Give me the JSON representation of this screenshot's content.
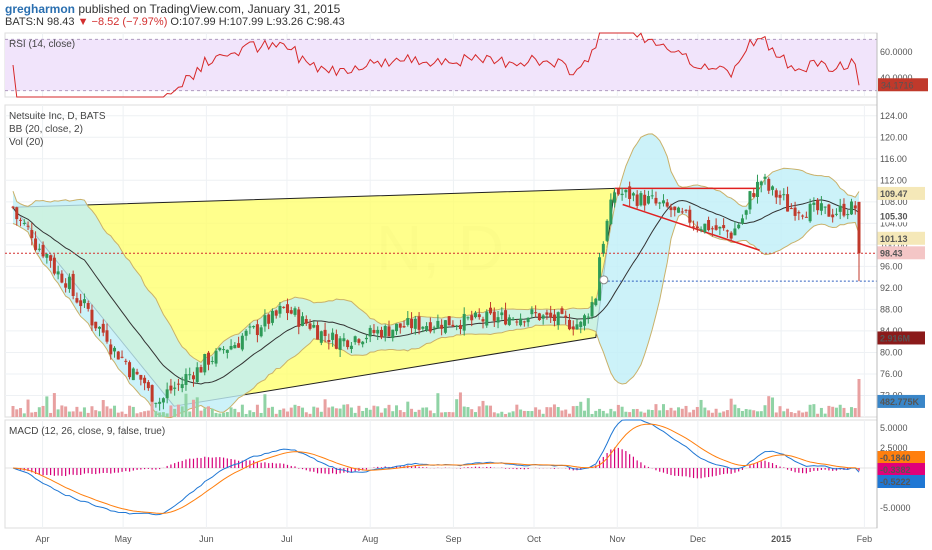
{
  "header": {
    "author": "gregharmon",
    "published_text": "published on TradingView.com, January 31, 2015",
    "symbol": "BATS:N",
    "last": "98.43",
    "change": "▼ −8.52 (−7.97%)",
    "ohlc": "O:107.99 H:107.99 L:93.26 C:98.43"
  },
  "panels": {
    "rsi_title": "RSI (14, close)",
    "price_title": "Netsuite Inc, D, BATS",
    "bb_title": "BB (20, close, 2)",
    "vol_title": "Vol (20)",
    "macd_title": "MACD (12, 26, close, 9, false, true)",
    "watermark": "N, D"
  },
  "colors": {
    "up": "#2e9a58",
    "down": "#c0392b",
    "bb_fill": "#bfeff7",
    "bb_line": "#c9b16a",
    "wedge": "#ffff66",
    "rsi_line": "#d62728",
    "rsi_band": "#f1e4fb",
    "macd": "#1f77d4",
    "signal": "#ff7f0e",
    "hist": "#d6007a"
  },
  "chart_data": [
    {
      "type": "candlestick",
      "title": "Netsuite Inc, D, BATS",
      "x_range": [
        "2014-03-21",
        "2015-01-30"
      ],
      "y_range": [
        68,
        126
      ],
      "x_ticks": [
        "Apr",
        "May",
        "Jun",
        "Jul",
        "Aug",
        "Sep",
        "Oct",
        "Nov",
        "Dec",
        "2015",
        "Feb"
      ],
      "y_ticks": [
        72,
        76,
        80,
        84,
        88,
        92,
        96,
        100,
        104,
        108,
        112,
        116,
        120,
        124
      ],
      "key_points": [
        {
          "date": "2014-03-21",
          "close": 107
        },
        {
          "date": "2014-04-15",
          "close": 90
        },
        {
          "date": "2014-05-01",
          "close": 79
        },
        {
          "date": "2014-05-15",
          "close": 71
        },
        {
          "date": "2014-06-01",
          "close": 78
        },
        {
          "date": "2014-07-01",
          "close": 88
        },
        {
          "date": "2014-07-20",
          "close": 82
        },
        {
          "date": "2014-08-15",
          "close": 85
        },
        {
          "date": "2014-09-10",
          "close": 86
        },
        {
          "date": "2014-10-01",
          "close": 87
        },
        {
          "date": "2014-10-20",
          "close": 85
        },
        {
          "date": "2014-10-25",
          "close": 92
        },
        {
          "date": "2014-10-31",
          "close": 110
        },
        {
          "date": "2014-11-15",
          "close": 108
        },
        {
          "date": "2014-12-01",
          "close": 104
        },
        {
          "date": "2014-12-15",
          "close": 102
        },
        {
          "date": "2014-12-25",
          "close": 112
        },
        {
          "date": "2015-01-05",
          "close": 107
        },
        {
          "date": "2015-01-20",
          "close": 106
        },
        {
          "date": "2015-01-29",
          "close": 107
        },
        {
          "date": "2015-01-30",
          "close": 98.43
        }
      ],
      "price_labels": [
        "109.47",
        "105.30",
        "101.13",
        "98.43",
        "2.916M",
        "482.775K"
      ]
    },
    {
      "type": "line",
      "title": "RSI (14, close)",
      "y_range": [
        25,
        75
      ],
      "y_ticks": [
        40,
        60
      ],
      "y_tick_labels": [
        "40.0000",
        "60.0000"
      ],
      "levels": [
        30,
        70
      ],
      "last_value_label": "34.1716",
      "last": 34.17
    },
    {
      "type": "line",
      "title": "MACD (12, 26, close, 9, false, true)",
      "y_range": [
        -7.5,
        6
      ],
      "y_ticks": [
        5,
        2.5,
        -5
      ],
      "y_tick_labels": [
        "5.0000",
        "2.5000",
        "-5.0000"
      ],
      "value_labels": [
        "-0.1840",
        "-0.3382",
        "-0.5222"
      ],
      "series": [
        {
          "name": "MACD",
          "last": -0.5222
        },
        {
          "name": "Signal",
          "last": -0.184
        },
        {
          "name": "Histogram",
          "last": -0.3382
        }
      ]
    }
  ]
}
